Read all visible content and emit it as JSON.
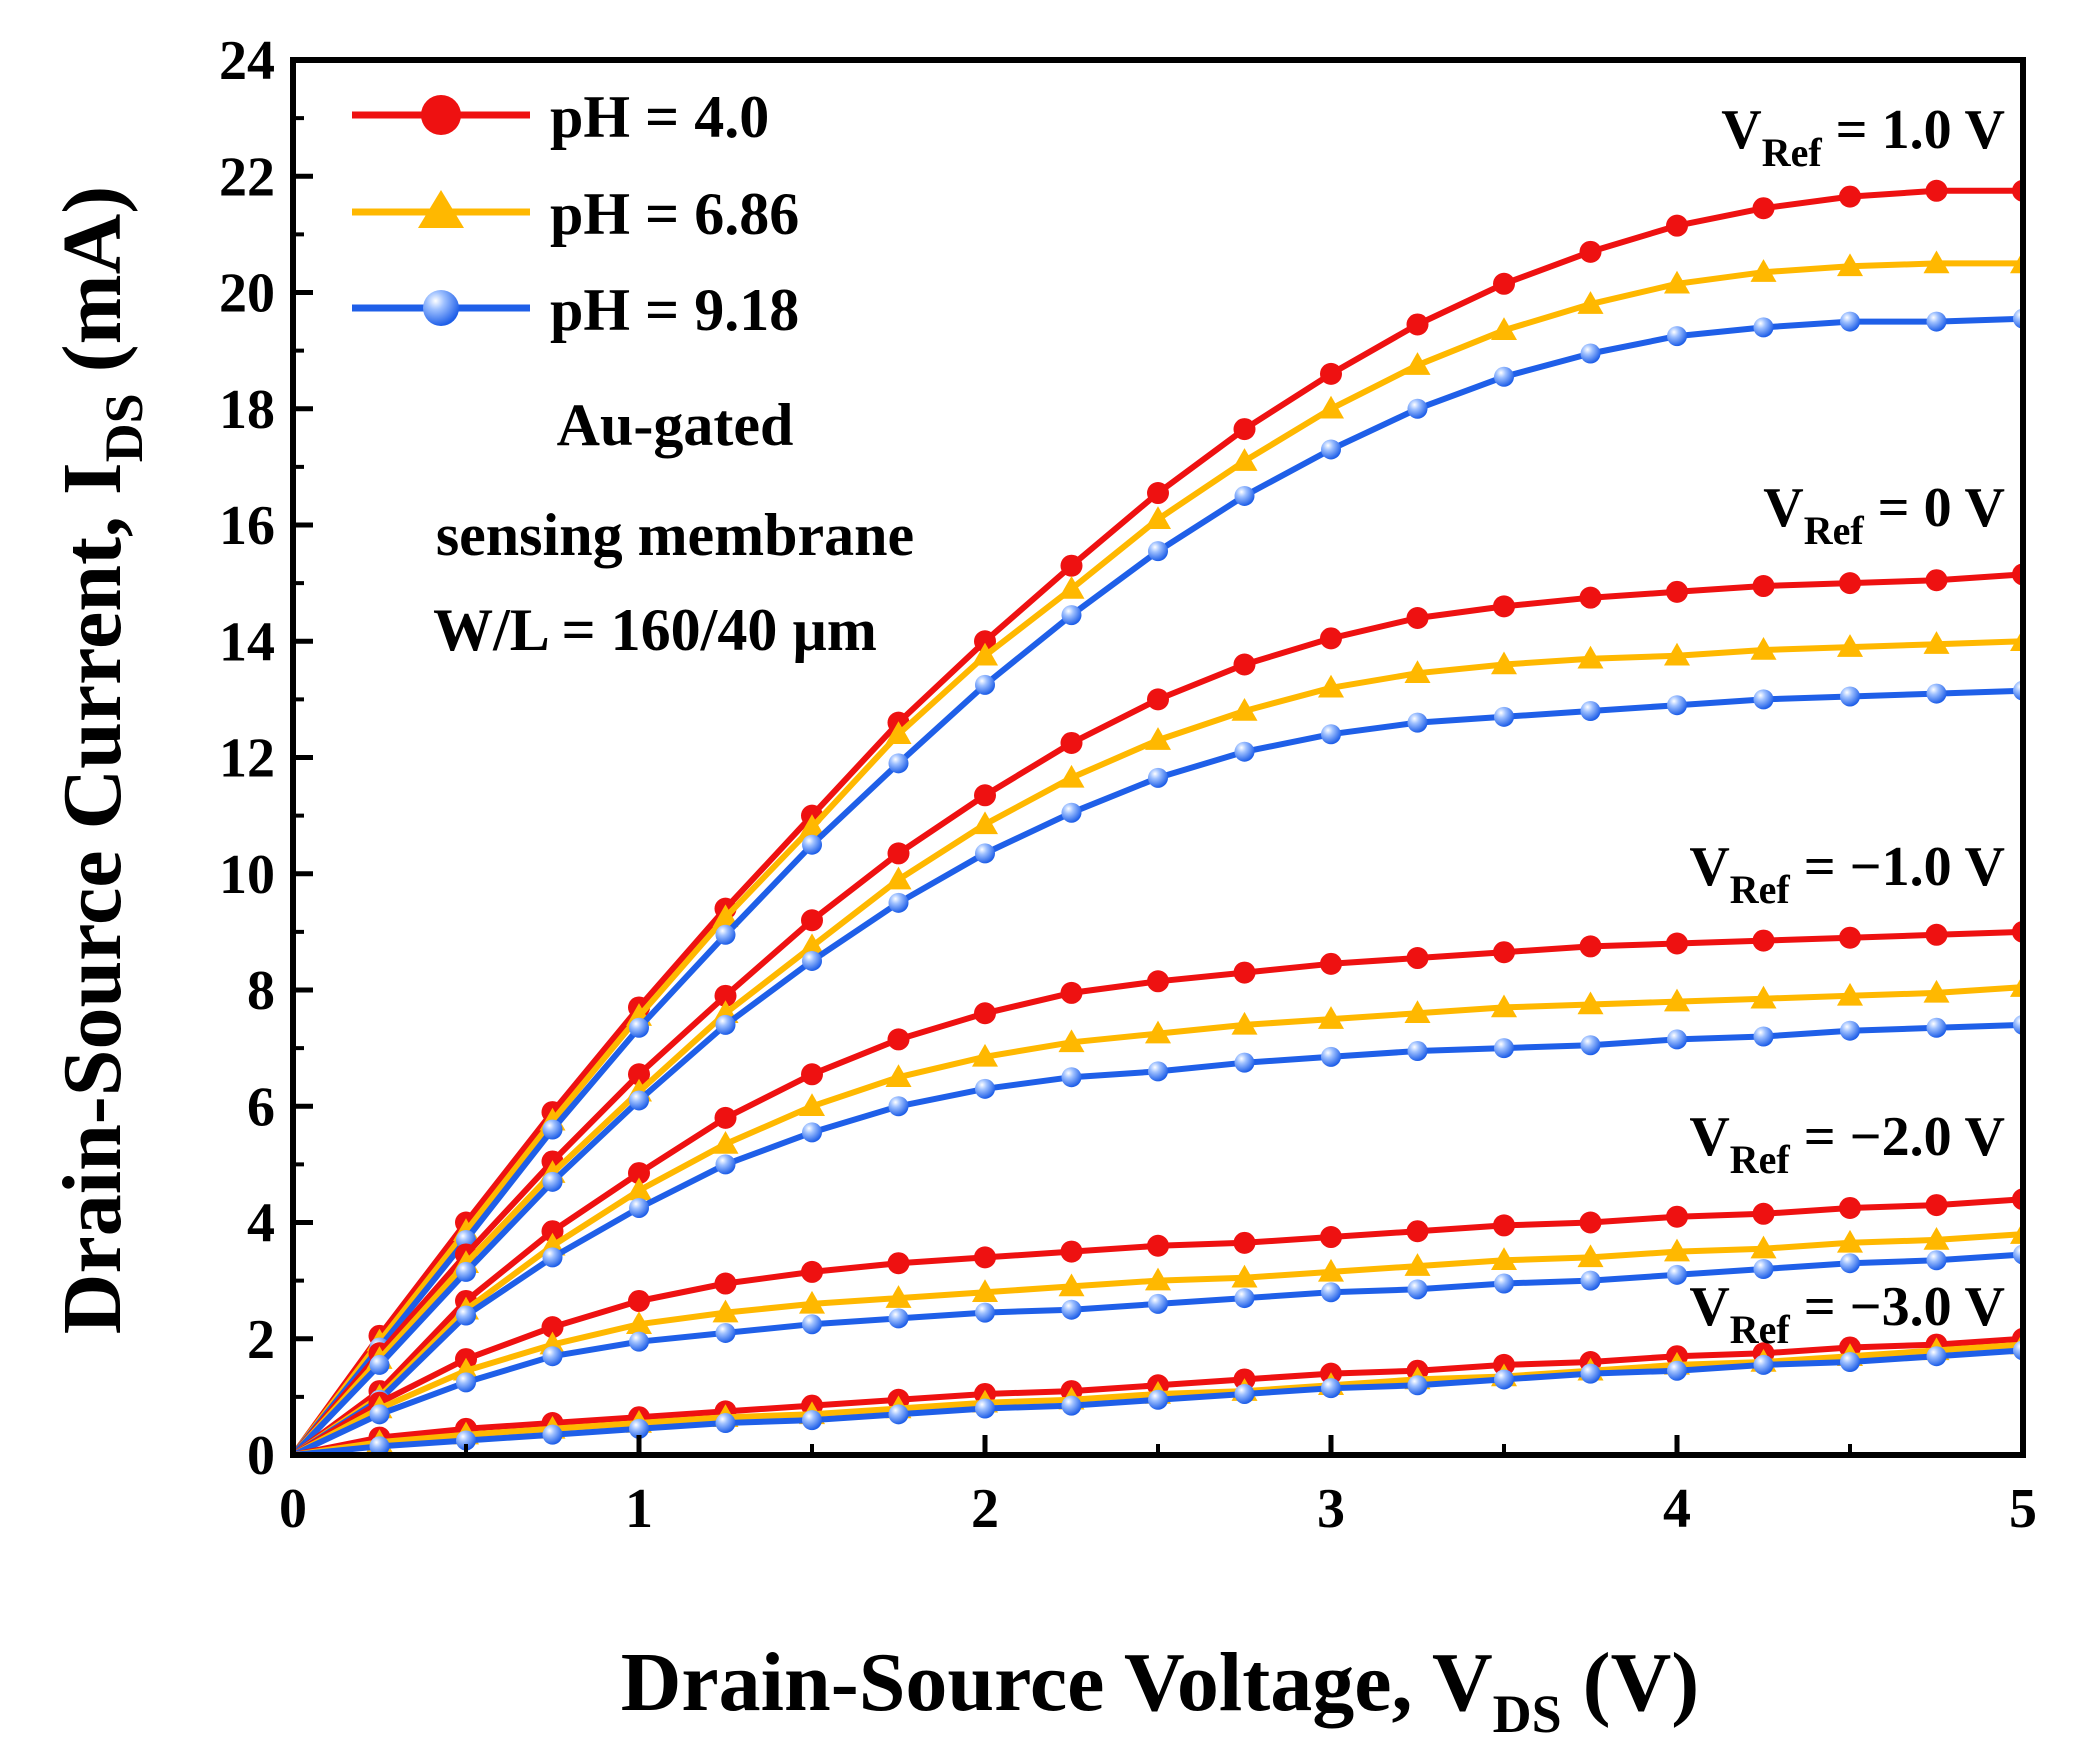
{
  "chart_data": {
    "type": "line",
    "xlabel": "Drain-Source Voltage, V",
    "xlabel_sub": "DS",
    "xlabel_unit": " (V)",
    "ylabel": "Drain-Source Current, I",
    "ylabel_sub": "DS",
    "ylabel_unit": " (mA)",
    "xlim": [
      0,
      5
    ],
    "ylim": [
      0,
      24
    ],
    "xticks": [
      "0",
      "1",
      "2",
      "3",
      "4",
      "5"
    ],
    "yticks": [
      "0",
      "2",
      "4",
      "6",
      "8",
      "10",
      "12",
      "14",
      "16",
      "18",
      "20",
      "22",
      "24"
    ],
    "legend_position": "top-left",
    "grid": false,
    "legend": [
      {
        "label": "pH = 4.0",
        "color": "#ee1111",
        "marker": "circle"
      },
      {
        "label": "pH = 6.86",
        "color": "#ffb800",
        "marker": "triangle"
      },
      {
        "label": "pH = 9.18",
        "color": "#1f5fe8",
        "marker": "sphere"
      }
    ],
    "annotation_lines": [
      "Au-gated",
      "sensing membrane",
      "W/L = 160/40 µm"
    ],
    "vref_labels": [
      {
        "prefix": "V",
        "sub": "Ref",
        "value": " = 1.0 V"
      },
      {
        "prefix": "V",
        "sub": "Ref",
        "value": " = 0 V"
      },
      {
        "prefix": "V",
        "sub": "Ref",
        "value": " = −1.0 V"
      },
      {
        "prefix": "V",
        "sub": "Ref",
        "value": " = −2.0 V"
      },
      {
        "prefix": "V",
        "sub": "Ref",
        "value": " = −3.0 V"
      }
    ],
    "x": [
      0,
      0.25,
      0.5,
      0.75,
      1.0,
      1.25,
      1.5,
      1.75,
      2.0,
      2.25,
      2.5,
      2.75,
      3.0,
      3.25,
      3.5,
      3.75,
      4.0,
      4.25,
      4.5,
      4.75,
      5.0
    ],
    "groups": [
      {
        "vref": "1.0 V",
        "series": [
          {
            "ph": "4.0",
            "values": [
              0,
              2.05,
              4.0,
              5.9,
              7.7,
              9.4,
              11.0,
              12.6,
              14.0,
              15.3,
              16.55,
              17.65,
              18.6,
              19.45,
              20.15,
              20.7,
              21.15,
              21.45,
              21.65,
              21.75,
              21.75
            ]
          },
          {
            "ph": "6.86",
            "values": [
              0,
              1.95,
              3.85,
              5.75,
              7.55,
              9.25,
              10.8,
              12.4,
              13.75,
              14.9,
              16.1,
              17.1,
              18.0,
              18.75,
              19.35,
              19.8,
              20.15,
              20.35,
              20.45,
              20.5,
              20.5
            ]
          },
          {
            "ph": "9.18",
            "values": [
              0,
              1.85,
              3.7,
              5.6,
              7.35,
              8.95,
              10.5,
              11.9,
              13.25,
              14.45,
              15.55,
              16.5,
              17.3,
              18.0,
              18.55,
              18.95,
              19.25,
              19.4,
              19.5,
              19.5,
              19.55
            ]
          }
        ]
      },
      {
        "vref": "0 V",
        "series": [
          {
            "ph": "4.0",
            "values": [
              0,
              1.75,
              3.45,
              5.05,
              6.55,
              7.9,
              9.2,
              10.35,
              11.35,
              12.25,
              13.0,
              13.6,
              14.05,
              14.4,
              14.6,
              14.75,
              14.85,
              14.95,
              15.0,
              15.05,
              15.15
            ]
          },
          {
            "ph": "6.86",
            "values": [
              0,
              1.65,
              3.3,
              4.85,
              6.25,
              7.6,
              8.75,
              9.9,
              10.85,
              11.65,
              12.3,
              12.8,
              13.2,
              13.45,
              13.6,
              13.7,
              13.75,
              13.85,
              13.9,
              13.95,
              14.0
            ]
          },
          {
            "ph": "9.18",
            "values": [
              0,
              1.55,
              3.15,
              4.7,
              6.1,
              7.4,
              8.5,
              9.5,
              10.35,
              11.05,
              11.65,
              12.1,
              12.4,
              12.6,
              12.7,
              12.8,
              12.9,
              13.0,
              13.05,
              13.1,
              13.15
            ]
          }
        ]
      },
      {
        "vref": "−1.0 V",
        "series": [
          {
            "ph": "4.0",
            "values": [
              0,
              1.1,
              2.65,
              3.85,
              4.85,
              5.8,
              6.55,
              7.15,
              7.6,
              7.95,
              8.15,
              8.3,
              8.45,
              8.55,
              8.65,
              8.75,
              8.8,
              8.85,
              8.9,
              8.95,
              9.0
            ]
          },
          {
            "ph": "6.86",
            "values": [
              0,
              1.0,
              2.5,
              3.6,
              4.55,
              5.35,
              6.0,
              6.5,
              6.85,
              7.1,
              7.25,
              7.4,
              7.5,
              7.6,
              7.7,
              7.75,
              7.8,
              7.85,
              7.9,
              7.95,
              8.05
            ]
          },
          {
            "ph": "9.18",
            "values": [
              0,
              0.95,
              2.4,
              3.4,
              4.25,
              5.0,
              5.55,
              6.0,
              6.3,
              6.5,
              6.6,
              6.75,
              6.85,
              6.95,
              7.0,
              7.05,
              7.15,
              7.2,
              7.3,
              7.35,
              7.4
            ]
          }
        ]
      },
      {
        "vref": "−2.0 V",
        "series": [
          {
            "ph": "4.0",
            "values": [
              0,
              0.9,
              1.65,
              2.2,
              2.65,
              2.95,
              3.15,
              3.3,
              3.4,
              3.5,
              3.6,
              3.65,
              3.75,
              3.85,
              3.95,
              4.0,
              4.1,
              4.15,
              4.25,
              4.3,
              4.4
            ]
          },
          {
            "ph": "6.86",
            "values": [
              0,
              0.8,
              1.45,
              1.9,
              2.25,
              2.45,
              2.6,
              2.7,
              2.8,
              2.9,
              3.0,
              3.05,
              3.15,
              3.25,
              3.35,
              3.4,
              3.5,
              3.55,
              3.65,
              3.7,
              3.8
            ]
          },
          {
            "ph": "9.18",
            "values": [
              0,
              0.7,
              1.25,
              1.7,
              1.95,
              2.1,
              2.25,
              2.35,
              2.45,
              2.5,
              2.6,
              2.7,
              2.8,
              2.85,
              2.95,
              3.0,
              3.1,
              3.2,
              3.3,
              3.35,
              3.45
            ]
          }
        ]
      },
      {
        "vref": "−3.0 V",
        "series": [
          {
            "ph": "4.0",
            "values": [
              0,
              0.3,
              0.45,
              0.55,
              0.65,
              0.75,
              0.85,
              0.95,
              1.05,
              1.1,
              1.2,
              1.3,
              1.4,
              1.45,
              1.55,
              1.6,
              1.7,
              1.75,
              1.85,
              1.9,
              2.0
            ]
          },
          {
            "ph": "6.86",
            "values": [
              0,
              0.22,
              0.35,
              0.45,
              0.55,
              0.65,
              0.7,
              0.8,
              0.9,
              0.95,
              1.05,
              1.1,
              1.2,
              1.3,
              1.35,
              1.45,
              1.55,
              1.6,
              1.7,
              1.8,
              1.9
            ]
          },
          {
            "ph": "9.18",
            "values": [
              0,
              0.15,
              0.25,
              0.35,
              0.45,
              0.55,
              0.6,
              0.7,
              0.8,
              0.85,
              0.95,
              1.05,
              1.15,
              1.2,
              1.3,
              1.4,
              1.45,
              1.55,
              1.6,
              1.7,
              1.8
            ]
          }
        ]
      }
    ]
  }
}
